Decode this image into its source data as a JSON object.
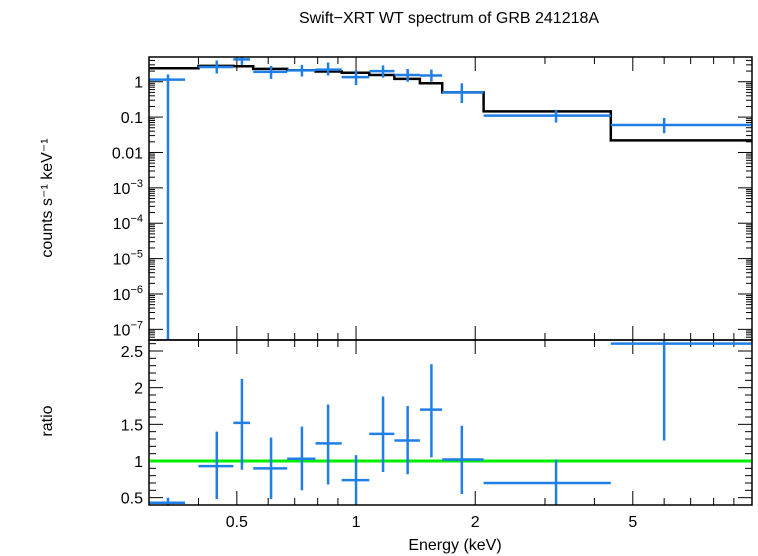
{
  "chart_data": [
    {
      "type": "scatter",
      "title": "Swift−XRT WT spectrum of GRB 241218A",
      "xlabel": "",
      "ylabel": "counts s⁻¹ keV⁻¹",
      "xscale": "log",
      "yscale": "log",
      "xlim": [
        0.3,
        10
      ],
      "ylim": [
        5e-08,
        5
      ],
      "yticks": [
        {
          "v": 1,
          "label": "1"
        },
        {
          "v": 0.1,
          "label": "0.1"
        },
        {
          "v": 0.01,
          "label": "0.01"
        },
        {
          "v": 0.001,
          "label": "10",
          "sup": "−3"
        },
        {
          "v": 0.0001,
          "label": "10",
          "sup": "−4"
        },
        {
          "v": 1e-05,
          "label": "10",
          "sup": "−5"
        },
        {
          "v": 1e-06,
          "label": "10",
          "sup": "−6"
        },
        {
          "v": 1e-07,
          "label": "10",
          "sup": "−7"
        }
      ],
      "data_color": "#1f7fe6",
      "model_color": "#000000",
      "series": [
        {
          "kind": "data",
          "points": [
            {
              "x": 0.335,
              "xlo": 0.3,
              "xhi": 0.37,
              "y": 1.15,
              "ylo": 5e-08,
              "yhi": 1.6
            },
            {
              "x": 0.445,
              "xlo": 0.4,
              "xhi": 0.49,
              "y": 2.6,
              "ylo": 1.7,
              "yhi": 4.0
            },
            {
              "x": 0.515,
              "xlo": 0.49,
              "xhi": 0.54,
              "y": 4.3,
              "ylo": 3.0,
              "yhi": 5.0
            },
            {
              "x": 0.61,
              "xlo": 0.55,
              "xhi": 0.67,
              "y": 1.9,
              "ylo": 1.2,
              "yhi": 2.8
            },
            {
              "x": 0.73,
              "xlo": 0.67,
              "xhi": 0.79,
              "y": 2.1,
              "ylo": 1.4,
              "yhi": 3.0
            },
            {
              "x": 0.85,
              "xlo": 0.79,
              "xhi": 0.92,
              "y": 2.2,
              "ylo": 1.5,
              "yhi": 3.5
            },
            {
              "x": 1.0,
              "xlo": 0.92,
              "xhi": 1.08,
              "y": 1.35,
              "ylo": 0.8,
              "yhi": 2.1
            },
            {
              "x": 1.17,
              "xlo": 1.08,
              "xhi": 1.25,
              "y": 2.0,
              "ylo": 1.3,
              "yhi": 2.9
            },
            {
              "x": 1.35,
              "xlo": 1.25,
              "xhi": 1.45,
              "y": 1.55,
              "ylo": 1.0,
              "yhi": 2.3
            },
            {
              "x": 1.55,
              "xlo": 1.45,
              "xhi": 1.65,
              "y": 1.5,
              "ylo": 1.0,
              "yhi": 2.2
            },
            {
              "x": 1.85,
              "xlo": 1.65,
              "xhi": 2.1,
              "y": 0.5,
              "ylo": 0.25,
              "yhi": 0.9
            },
            {
              "x": 3.2,
              "xlo": 2.1,
              "xhi": 4.4,
              "y": 0.11,
              "ylo": 0.07,
              "yhi": 0.16
            },
            {
              "x": 6.0,
              "xlo": 4.4,
              "xhi": 10.0,
              "y": 0.06,
              "ylo": 0.035,
              "yhi": 0.095
            }
          ]
        },
        {
          "kind": "model",
          "steps": [
            {
              "x0": 0.3,
              "x1": 0.4,
              "y": 2.4
            },
            {
              "x0": 0.4,
              "x1": 0.49,
              "y": 2.8
            },
            {
              "x0": 0.49,
              "x1": 0.55,
              "y": 2.75
            },
            {
              "x0": 0.55,
              "x1": 0.67,
              "y": 2.3
            },
            {
              "x0": 0.67,
              "x1": 0.79,
              "y": 2.1
            },
            {
              "x0": 0.79,
              "x1": 0.92,
              "y": 1.95
            },
            {
              "x0": 0.92,
              "x1": 1.08,
              "y": 1.8
            },
            {
              "x0": 1.08,
              "x1": 1.25,
              "y": 1.55
            },
            {
              "x0": 1.25,
              "x1": 1.45,
              "y": 1.2
            },
            {
              "x0": 1.45,
              "x1": 1.65,
              "y": 0.9
            },
            {
              "x0": 1.65,
              "x1": 2.1,
              "y": 0.5
            },
            {
              "x0": 2.1,
              "x1": 4.4,
              "y": 0.145
            },
            {
              "x0": 4.4,
              "x1": 10.0,
              "y": 0.022
            }
          ]
        }
      ]
    },
    {
      "type": "scatter",
      "title": "",
      "xlabel": "Energy (keV)",
      "ylabel": "ratio",
      "xscale": "log",
      "yscale": "linear",
      "xlim": [
        0.3,
        10
      ],
      "ylim": [
        0.4,
        2.65
      ],
      "yticks": [
        {
          "v": 0.5,
          "label": "0.5"
        },
        {
          "v": 1,
          "label": "1"
        },
        {
          "v": 1.5,
          "label": "1.5"
        },
        {
          "v": 2,
          "label": "2"
        },
        {
          "v": 2.5,
          "label": "2.5"
        }
      ],
      "xticks": [
        {
          "v": 0.5,
          "label": "0.5"
        },
        {
          "v": 1,
          "label": "1"
        },
        {
          "v": 2,
          "label": "2"
        },
        {
          "v": 5,
          "label": "5"
        }
      ],
      "reference_line": 1,
      "reference_color": "#00ee00",
      "data_color": "#1f7fe6",
      "points": [
        {
          "x": 0.335,
          "xlo": 0.3,
          "xhi": 0.37,
          "y": 0.43,
          "ylo": 0.4,
          "yhi": 0.5
        },
        {
          "x": 0.445,
          "xlo": 0.4,
          "xhi": 0.49,
          "y": 0.93,
          "ylo": 0.48,
          "yhi": 1.4
        },
        {
          "x": 0.515,
          "xlo": 0.49,
          "xhi": 0.54,
          "y": 1.52,
          "ylo": 0.88,
          "yhi": 2.12
        },
        {
          "x": 0.61,
          "xlo": 0.55,
          "xhi": 0.67,
          "y": 0.9,
          "ylo": 0.48,
          "yhi": 1.32
        },
        {
          "x": 0.73,
          "xlo": 0.67,
          "xhi": 0.79,
          "y": 1.03,
          "ylo": 0.6,
          "yhi": 1.47
        },
        {
          "x": 0.85,
          "xlo": 0.79,
          "xhi": 0.92,
          "y": 1.24,
          "ylo": 0.68,
          "yhi": 1.77
        },
        {
          "x": 1.0,
          "xlo": 0.92,
          "xhi": 1.08,
          "y": 0.74,
          "ylo": 0.38,
          "yhi": 1.08
        },
        {
          "x": 1.17,
          "xlo": 1.08,
          "xhi": 1.25,
          "y": 1.37,
          "ylo": 0.85,
          "yhi": 1.88
        },
        {
          "x": 1.35,
          "xlo": 1.25,
          "xhi": 1.45,
          "y": 1.28,
          "ylo": 0.82,
          "yhi": 1.75
        },
        {
          "x": 1.55,
          "xlo": 1.45,
          "xhi": 1.65,
          "y": 1.7,
          "ylo": 1.05,
          "yhi": 2.32
        },
        {
          "x": 1.85,
          "xlo": 1.65,
          "xhi": 2.1,
          "y": 1.02,
          "ylo": 0.55,
          "yhi": 1.48
        },
        {
          "x": 3.2,
          "xlo": 2.1,
          "xhi": 4.4,
          "y": 0.7,
          "ylo": 0.38,
          "yhi": 1.02
        },
        {
          "x": 6.0,
          "xlo": 4.4,
          "xhi": 10.0,
          "y": 2.6,
          "ylo": 1.28,
          "yhi": 2.65
        }
      ]
    }
  ]
}
